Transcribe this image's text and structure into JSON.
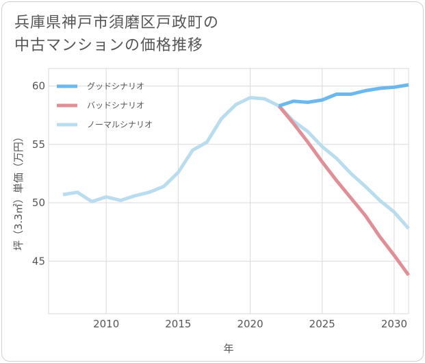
{
  "chart_data": {
    "type": "line",
    "title_lines": [
      "兵庫県神戸市須磨区戸政町の",
      "中古マンションの価格推移"
    ],
    "xlabel": "年",
    "ylabel": "坪（3.3㎡）単価（万円）",
    "xlim": [
      2006,
      2031
    ],
    "ylim": [
      40.5,
      61.5
    ],
    "xticks": [
      2010,
      2015,
      2020,
      2025,
      2030
    ],
    "yticks": [
      45,
      50,
      55,
      60
    ],
    "grid": true,
    "legend_position": "top-left",
    "series": [
      {
        "name": "グッドシナリオ",
        "color": "#6bb8ee",
        "x": [
          2022,
          2023,
          2024,
          2025,
          2026,
          2027,
          2028,
          2029,
          2030,
          2031
        ],
        "y": [
          58.3,
          58.7,
          58.6,
          58.8,
          59.3,
          59.3,
          59.6,
          59.8,
          59.9,
          60.1
        ]
      },
      {
        "name": "バッドシナリオ",
        "color": "#e08f97",
        "x": [
          2022,
          2023,
          2024,
          2025,
          2026,
          2027,
          2028,
          2029,
          2030,
          2031
        ],
        "y": [
          58.3,
          56.8,
          55.2,
          53.5,
          51.9,
          50.4,
          48.9,
          47.1,
          45.5,
          43.8
        ]
      },
      {
        "name": "ノーマルシナリオ",
        "color": "#b9ddef",
        "x": [
          2007,
          2008,
          2009,
          2010,
          2011,
          2012,
          2013,
          2014,
          2015,
          2016,
          2017,
          2018,
          2019,
          2020,
          2021,
          2022,
          2023,
          2024,
          2025,
          2026,
          2027,
          2028,
          2029,
          2030,
          2031
        ],
        "y": [
          50.7,
          50.9,
          50.1,
          50.5,
          50.2,
          50.6,
          50.9,
          51.4,
          52.6,
          54.5,
          55.2,
          57.2,
          58.4,
          59.0,
          58.9,
          58.3,
          57.0,
          56.1,
          54.8,
          53.8,
          52.5,
          51.4,
          50.2,
          49.2,
          47.8
        ]
      }
    ]
  }
}
